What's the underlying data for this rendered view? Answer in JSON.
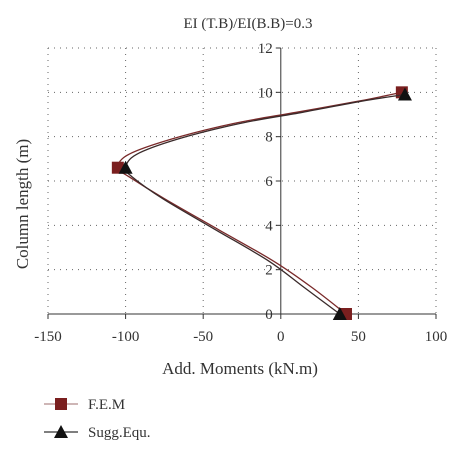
{
  "chart_data": {
    "type": "line",
    "title": "EI (T.B)/EI(B.B)=0.3",
    "xlabel": "Add. Moments (kN.m)",
    "ylabel": "Column length (m)",
    "xlim": [
      -150,
      100
    ],
    "ylim": [
      0,
      12
    ],
    "xticks": [
      -150,
      -100,
      -50,
      0,
      50,
      100
    ],
    "yticks": [
      0,
      2,
      4,
      6,
      8,
      10,
      12
    ],
    "grid": "dotted",
    "legend_position": "bottom-left",
    "series": [
      {
        "name": "F.E.M",
        "marker": "square",
        "color": "#7a1f1f",
        "curve": [
          [
            42,
            0
          ],
          [
            20,
            1.2
          ],
          [
            -5,
            2.4
          ],
          [
            -40,
            3.8
          ],
          [
            -75,
            5.2
          ],
          [
            -98,
            6.2
          ],
          [
            -105,
            6.6
          ],
          [
            -98,
            7.2
          ],
          [
            -70,
            7.9
          ],
          [
            -30,
            8.6
          ],
          [
            10,
            9.1
          ],
          [
            50,
            9.6
          ],
          [
            78,
            10
          ]
        ],
        "markers": [
          [
            42,
            0
          ],
          [
            -105,
            6.6
          ],
          [
            78,
            10
          ]
        ]
      },
      {
        "name": "Sugg.Equ.",
        "marker": "triangle",
        "color": "#111111",
        "curve": [
          [
            38,
            0
          ],
          [
            15,
            1.2
          ],
          [
            -8,
            2.4
          ],
          [
            -42,
            3.8
          ],
          [
            -76,
            5.2
          ],
          [
            -96,
            6.2
          ],
          [
            -100,
            6.6
          ],
          [
            -93,
            7.2
          ],
          [
            -66,
            7.9
          ],
          [
            -26,
            8.6
          ],
          [
            14,
            9.1
          ],
          [
            52,
            9.6
          ],
          [
            80,
            9.9
          ]
        ],
        "markers": [
          [
            38,
            0
          ],
          [
            -100,
            6.6
          ],
          [
            80,
            9.9
          ]
        ]
      }
    ]
  }
}
